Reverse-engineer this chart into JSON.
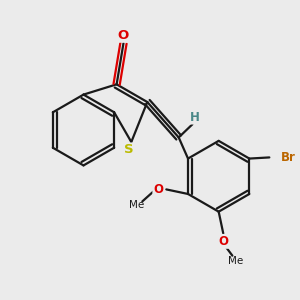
{
  "bg_color": "#ebebeb",
  "bond_color": "#1a1a1a",
  "bond_width": 1.6,
  "atom_colors": {
    "O": "#dd0000",
    "S": "#bbbb00",
    "Br": "#bb6600",
    "H": "#4a8888",
    "C": "#1a1a1a"
  },
  "font_size": 8.5,
  "fig_width": 3.0,
  "fig_height": 3.0,
  "dpi": 100,
  "xlim": [
    -2.6,
    2.6
  ],
  "ylim": [
    -2.4,
    2.4
  ]
}
